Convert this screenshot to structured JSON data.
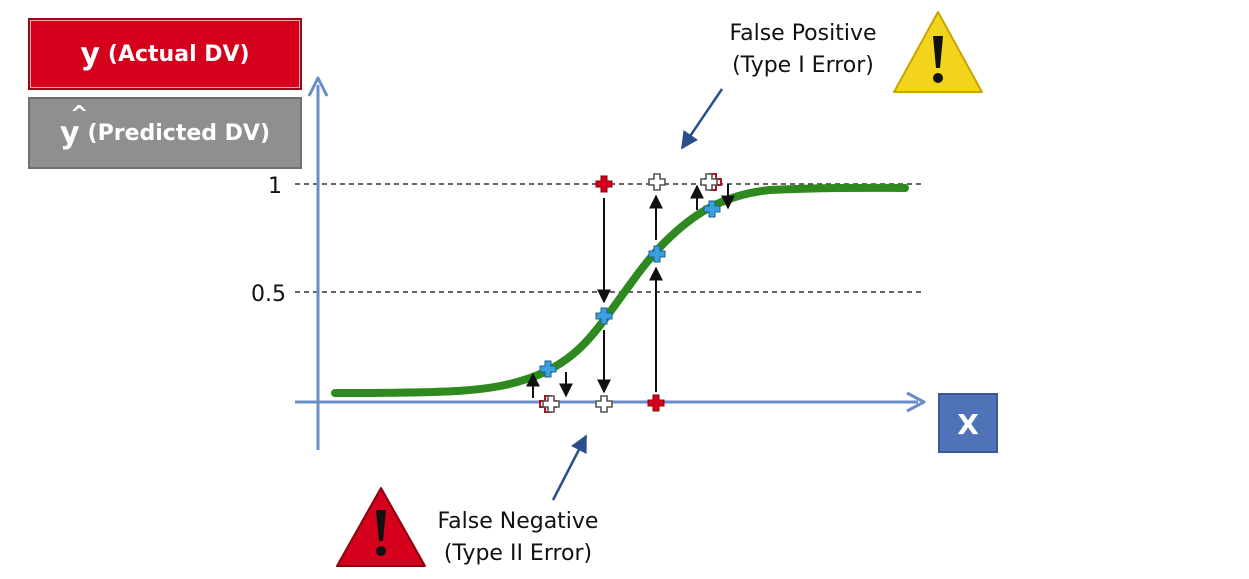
{
  "legend": {
    "actual_symbol": "y",
    "actual_label": "(Actual DV)",
    "predicted_symbol": "y",
    "predicted_hat": "^",
    "predicted_label": "(Predicted DV)"
  },
  "axis": {
    "x_label": "X",
    "ticks": [
      "1",
      "0.5"
    ]
  },
  "annotations": {
    "false_positive_line1": "False Positive",
    "false_positive_line2": "(Type I Error)",
    "false_negative_line1": "False Negative",
    "false_negative_line2": "(Type II Error)"
  },
  "icons": {
    "warning_yellow": "warning-icon",
    "warning_red": "warning-icon",
    "actual_point_color": "#d4001c",
    "predicted_point_color": "#3aa0e0",
    "curve_color": "#2e8a1f",
    "axis_color": "#6a8cc8"
  }
}
